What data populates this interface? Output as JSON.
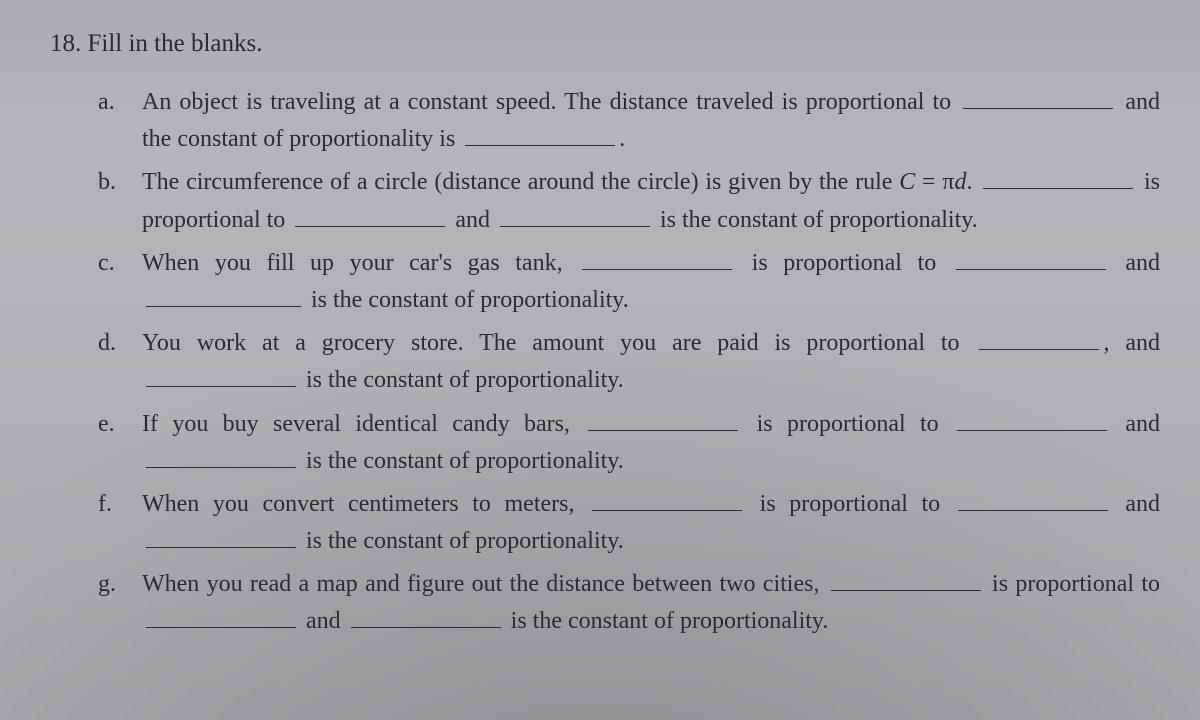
{
  "question_number": "18.",
  "question_stem": "Fill in the blanks.",
  "parts": [
    {
      "letter": "a.",
      "segments": [
        {
          "t": "An object is traveling at a constant speed. The distance traveled is proportional to "
        },
        {
          "blank": "w-md"
        },
        {
          "t": " and the constant of proportionality is "
        },
        {
          "blank": "w-md"
        },
        {
          "t": "."
        }
      ]
    },
    {
      "letter": "b.",
      "segments": [
        {
          "t": "The circumference of a circle (distance around the circle) is given by the rule "
        },
        {
          "it": "C"
        },
        {
          "t": " = π"
        },
        {
          "it": "d"
        },
        {
          "t": ". "
        },
        {
          "blank": "w-md"
        },
        {
          "t": " is proportional to "
        },
        {
          "blank": "w-md"
        },
        {
          "t": " and "
        },
        {
          "blank": "w-md"
        },
        {
          "t": " is the constant of proportionality."
        }
      ]
    },
    {
      "letter": "c.",
      "segments": [
        {
          "t": "When you fill up your car's gas tank, "
        },
        {
          "blank": "w-md"
        },
        {
          "t": " is proportional to "
        },
        {
          "blank": "w-md"
        },
        {
          "t": " and "
        },
        {
          "blank": "w-lg"
        },
        {
          "t": " is the constant of proportionality."
        }
      ]
    },
    {
      "letter": "d.",
      "segments": [
        {
          "t": "You work at a grocery store. The amount you are paid is proportional to "
        },
        {
          "blank": "w-sm"
        },
        {
          "t": ", and "
        },
        {
          "blank": "w-md"
        },
        {
          "t": " is the constant of proportionality."
        }
      ]
    },
    {
      "letter": "e.",
      "segments": [
        {
          "t": "If you buy several identical candy bars, "
        },
        {
          "blank": "w-md"
        },
        {
          "t": " is proportional to "
        },
        {
          "blank": "w-md"
        },
        {
          "t": " and "
        },
        {
          "blank": "w-md"
        },
        {
          "t": " is the constant of proportionality."
        }
      ]
    },
    {
      "letter": "f.",
      "segments": [
        {
          "t": "When you convert centimeters to meters, "
        },
        {
          "blank": "w-md"
        },
        {
          "t": " is proportional to "
        },
        {
          "blank": "w-md"
        },
        {
          "t": " and "
        },
        {
          "blank": "w-md"
        },
        {
          "t": " is the constant of proportionality."
        }
      ]
    },
    {
      "letter": "g.",
      "segments": [
        {
          "t": "When you read a map and figure out the distance between two cities, "
        },
        {
          "blank": "w-md"
        },
        {
          "t": " is proportional to "
        },
        {
          "blank": "w-md"
        },
        {
          "t": " and "
        },
        {
          "blank": "w-md"
        },
        {
          "t": " is the constant of proportionality."
        }
      ]
    }
  ]
}
